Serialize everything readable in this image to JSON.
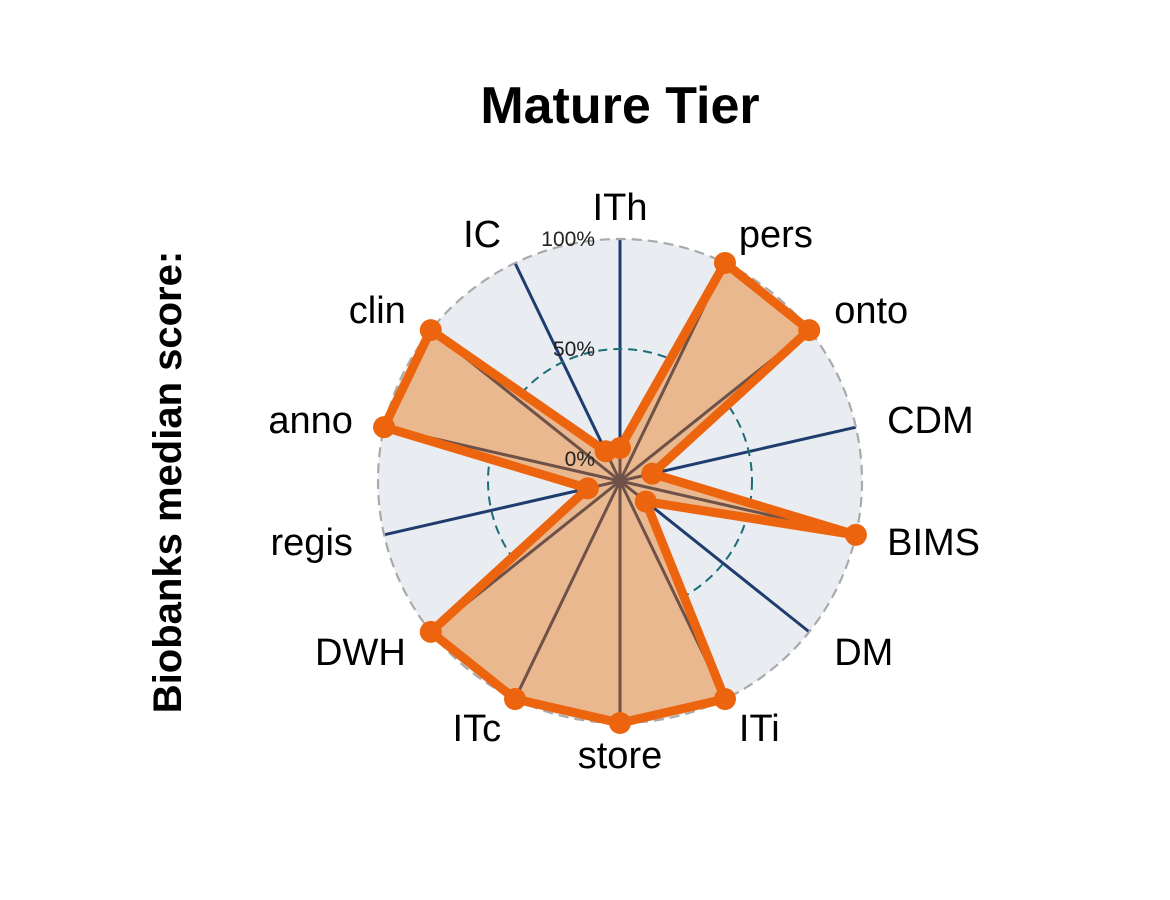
{
  "chart_data": {
    "type": "radar",
    "title": "Mature Tier",
    "ylabel": "Biobanks median score:",
    "rlim": [
      0,
      100
    ],
    "radial_ticks": [
      "0%",
      "50%",
      "100%"
    ],
    "categories": [
      "ITh",
      "pers",
      "onto",
      "CDM",
      "BIMS",
      "DM",
      "ITi",
      "store",
      "ITc",
      "DWH",
      "regis",
      "anno",
      "clin",
      "IC"
    ],
    "series": [
      {
        "name": "",
        "values": [
          5,
          100,
          100,
          5,
          100,
          5,
          100,
          100,
          100,
          100,
          5,
          100,
          100,
          5
        ]
      }
    ],
    "grid": true,
    "colors": {
      "series_line": "#ec650e",
      "series_fill": "#eab88f",
      "spoke": "#1e3d6e",
      "background": "#e9ecf1",
      "outer_ring": "#aaaaaa",
      "mid_ring": "#1a6e78",
      "inner_ring": "#333333"
    }
  }
}
